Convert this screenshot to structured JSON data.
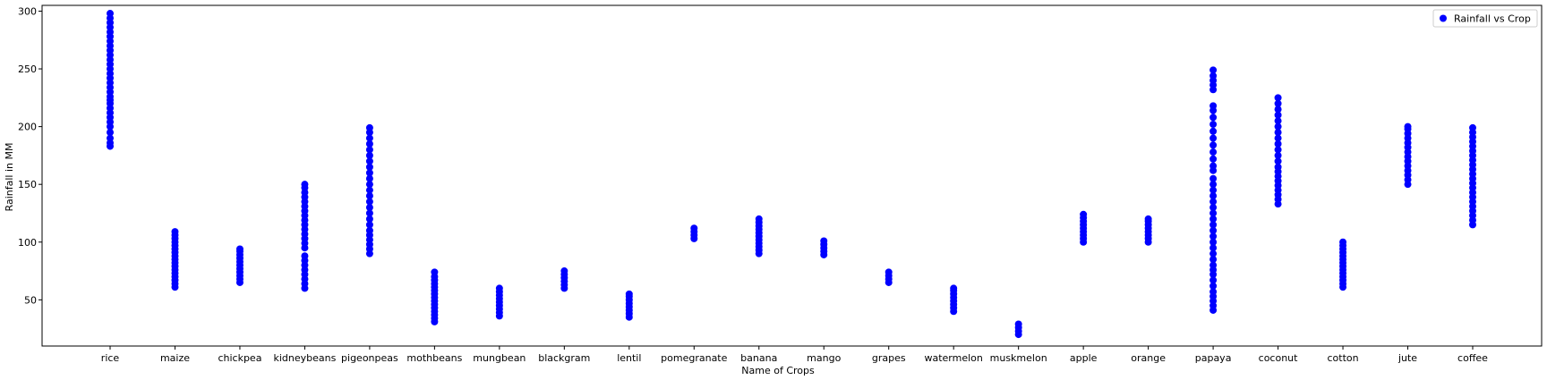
{
  "chart_data": {
    "type": "scatter",
    "xlabel": "Name of Crops",
    "ylabel": "Rainfall in MM",
    "ylim": [
      10,
      305
    ],
    "yticks": [
      50,
      100,
      150,
      200,
      250,
      300
    ],
    "grid": false,
    "legend_placement": "top-right",
    "categories": [
      "rice",
      "maize",
      "chickpea",
      "kidneybeans",
      "pigeonpeas",
      "mothbeans",
      "mungbean",
      "blackgram",
      "lentil",
      "pomegranate",
      "banana",
      "mango",
      "grapes",
      "watermelon",
      "muskmelon",
      "apple",
      "orange",
      "papaya",
      "coconut",
      "cotton",
      "jute",
      "coffee"
    ],
    "series": [
      {
        "name": "Rainfall vs Crop",
        "color": "#0000ff",
        "points": {
          "rice": [
            183,
            186,
            190,
            195,
            200,
            204,
            208,
            212,
            216,
            220,
            223,
            226,
            230,
            234,
            238,
            242,
            246,
            250,
            254,
            258,
            262,
            266,
            270,
            274,
            278,
            282,
            286,
            290,
            294,
            298
          ],
          "maize": [
            61,
            64,
            67,
            70,
            73,
            76,
            79,
            82,
            85,
            88,
            91,
            94,
            97,
            100,
            103,
            106,
            109
          ],
          "chickpea": [
            65,
            68,
            71,
            74,
            77,
            80,
            83,
            86,
            89,
            92,
            94
          ],
          "kidneybeans": [
            60,
            64,
            68,
            72,
            76,
            80,
            84,
            88,
            95,
            99,
            103,
            107,
            111,
            115,
            119,
            123,
            127,
            131,
            135,
            139,
            143,
            147,
            150
          ],
          "pigeonpeas": [
            90,
            94,
            98,
            102,
            106,
            110,
            115,
            120,
            125,
            130,
            135,
            140,
            145,
            150,
            155,
            160,
            165,
            170,
            175,
            180,
            185,
            190,
            195,
            199
          ],
          "mothbeans": [
            31,
            34,
            37,
            40,
            43,
            46,
            49,
            52,
            55,
            58,
            61,
            64,
            67,
            70,
            74
          ],
          "mungbean": [
            36,
            39,
            42,
            45,
            48,
            51,
            54,
            57,
            60
          ],
          "blackgram": [
            60,
            63,
            66,
            69,
            72,
            75
          ],
          "lentil": [
            35,
            38,
            41,
            44,
            47,
            50,
            53,
            55
          ],
          "pomegranate": [
            103,
            106,
            109,
            112
          ],
          "banana": [
            90,
            93,
            96,
            99,
            102,
            105,
            108,
            111,
            114,
            117,
            120
          ],
          "mango": [
            89,
            92,
            95,
            98,
            101
          ],
          "grapes": [
            65,
            68,
            71,
            74
          ],
          "watermelon": [
            40,
            43,
            46,
            49,
            52,
            55,
            58,
            60
          ],
          "muskmelon": [
            20,
            23,
            26,
            29
          ],
          "apple": [
            100,
            103,
            106,
            109,
            112,
            115,
            118,
            121,
            124
          ],
          "orange": [
            100,
            103,
            106,
            109,
            112,
            115,
            118,
            120
          ],
          "papaya": [
            41,
            45,
            49,
            53,
            57,
            62,
            67,
            72,
            76,
            80,
            85,
            90,
            95,
            100,
            105,
            110,
            115,
            120,
            125,
            130,
            135,
            140,
            145,
            150,
            155,
            162,
            166,
            172,
            178,
            184,
            190,
            196,
            202,
            208,
            214,
            218,
            232,
            236,
            240,
            244,
            249
          ],
          "coconut": [
            133,
            137,
            141,
            145,
            149,
            153,
            157,
            161,
            165,
            170,
            175,
            180,
            185,
            190,
            195,
            200,
            205,
            210,
            215,
            220,
            225
          ],
          "cotton": [
            61,
            64,
            67,
            70,
            73,
            76,
            79,
            82,
            85,
            88,
            91,
            94,
            97,
            100
          ],
          "jute": [
            150,
            154,
            158,
            162,
            166,
            170,
            174,
            178,
            182,
            186,
            190,
            194,
            198,
            200
          ],
          "coffee": [
            115,
            119,
            123,
            127,
            131,
            135,
            139,
            143,
            147,
            151,
            155,
            159,
            163,
            167,
            171,
            175,
            179,
            183,
            187,
            191,
            195,
            199
          ]
        }
      }
    ]
  }
}
